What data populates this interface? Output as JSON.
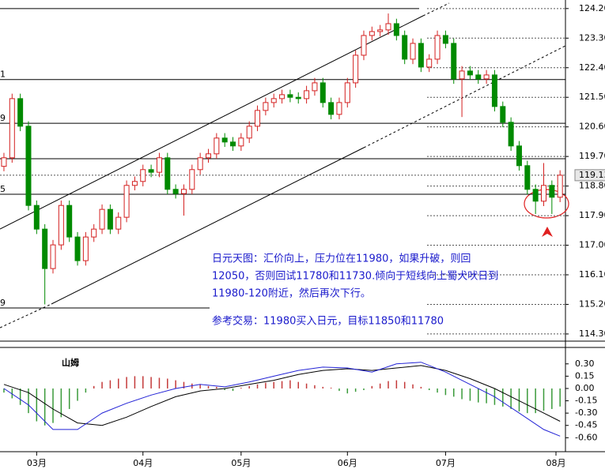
{
  "chart_data": [
    {
      "type": "candlestick",
      "xlim": [
        -0.48,
        68.66
      ],
      "ylim": [
        114.13,
        124.46
      ],
      "yticks": [
        {
          "value": 124.2,
          "label": "124.20"
        },
        {
          "value": 123.3,
          "label": "123.30"
        },
        {
          "value": 122.4,
          "label": "122.40"
        },
        {
          "value": 121.5,
          "label": "121.50"
        },
        {
          "value": 120.6,
          "label": "120.60"
        },
        {
          "value": 119.7,
          "label": "119.70"
        },
        {
          "value": 118.8,
          "label": "118.80"
        },
        {
          "value": 117.9,
          "label": "117.90"
        },
        {
          "value": 117.0,
          "label": "117.00"
        },
        {
          "value": 116.1,
          "label": "116.10"
        },
        {
          "value": 115.2,
          "label": "115.20"
        },
        {
          "value": 114.3,
          "label": "114.30"
        }
      ],
      "up_color": "#d42020",
      "down_color": "#008a00",
      "open": [
        119.4,
        119.66,
        121.46,
        120.62,
        118.21,
        117.49,
        116.29,
        117.01,
        118.21,
        117.25,
        116.53,
        117.25,
        117.49,
        118.09,
        117.49,
        117.85,
        118.82,
        118.94,
        119.3,
        119.22,
        119.66,
        118.7,
        118.57,
        118.7,
        119.3,
        119.66,
        119.78,
        120.26,
        120.14,
        120.02,
        120.26,
        120.62,
        121.1,
        121.34,
        121.46,
        121.58,
        121.5,
        121.46,
        121.7,
        121.94,
        121.34,
        120.98,
        121.34,
        121.94,
        122.78,
        123.38,
        123.5,
        123.55,
        123.74,
        123.38,
        122.66,
        123.14,
        122.42,
        122.66,
        123.38,
        123.14,
        122.06,
        122.3,
        122.18,
        122.06,
        122.18,
        121.22,
        120.74,
        120.02,
        119.42,
        118.7,
        118.34,
        118.82,
        118.46
      ],
      "high": [
        119.81,
        121.61,
        121.61,
        120.77,
        118.36,
        117.64,
        117.16,
        118.36,
        118.36,
        117.4,
        117.4,
        117.64,
        118.24,
        118.24,
        118.0,
        118.97,
        119.09,
        119.45,
        119.45,
        119.81,
        119.81,
        118.85,
        118.85,
        119.45,
        119.81,
        119.93,
        120.41,
        120.41,
        120.29,
        120.41,
        120.77,
        121.25,
        121.49,
        121.61,
        121.73,
        121.73,
        121.65,
        121.85,
        122.09,
        122.09,
        121.49,
        121.49,
        122.09,
        122.93,
        123.53,
        123.65,
        123.7,
        124.05,
        123.89,
        123.53,
        123.29,
        123.29,
        122.81,
        123.53,
        123.53,
        123.29,
        122.45,
        122.45,
        122.33,
        122.33,
        122.33,
        121.37,
        120.89,
        120.17,
        119.57,
        118.85,
        119.5,
        118.97,
        119.28
      ],
      "low": [
        119.25,
        119.51,
        120.47,
        118.06,
        117.34,
        115.2,
        116.14,
        116.86,
        117.1,
        116.38,
        116.38,
        117.1,
        117.34,
        117.34,
        117.34,
        117.7,
        118.67,
        118.79,
        119.07,
        119.07,
        118.55,
        118.42,
        117.9,
        118.55,
        119.15,
        119.51,
        119.63,
        119.99,
        119.87,
        119.87,
        120.11,
        120.47,
        120.95,
        121.19,
        121.31,
        121.35,
        121.31,
        121.31,
        121.55,
        121.19,
        120.83,
        120.83,
        121.19,
        121.79,
        122.63,
        123.23,
        123.35,
        123.4,
        123.23,
        122.51,
        122.51,
        122.27,
        122.27,
        122.51,
        122.99,
        121.91,
        120.9,
        122.03,
        121.91,
        121.91,
        121.07,
        120.59,
        119.87,
        119.27,
        118.55,
        117.95,
        118.19,
        117.95,
        118.31
      ],
      "close": [
        119.66,
        121.46,
        120.62,
        118.21,
        117.49,
        116.29,
        117.01,
        118.21,
        117.25,
        116.53,
        117.25,
        117.49,
        118.09,
        117.49,
        117.85,
        118.82,
        118.94,
        119.3,
        119.22,
        119.66,
        118.7,
        118.57,
        118.7,
        119.3,
        119.66,
        119.78,
        120.26,
        120.14,
        120.02,
        120.26,
        120.62,
        121.1,
        121.34,
        121.46,
        121.58,
        121.5,
        121.46,
        121.7,
        121.94,
        121.34,
        120.98,
        121.34,
        121.94,
        122.78,
        123.38,
        123.5,
        123.55,
        123.74,
        123.38,
        122.66,
        123.14,
        122.42,
        122.66,
        123.38,
        123.14,
        122.06,
        122.3,
        122.18,
        122.06,
        122.18,
        121.22,
        120.74,
        120.02,
        119.42,
        118.7,
        118.34,
        118.82,
        118.46,
        119.13
      ],
      "last": {
        "value": 119.13,
        "label": "119.13"
      },
      "levels": [
        {
          "value": 124.2
        },
        {
          "value": 122.04,
          "label": "1"
        },
        {
          "value": 120.71,
          "label": "9"
        },
        {
          "value": 119.63
        },
        {
          "value": 118.55,
          "label": "5"
        },
        {
          "value": 115.09,
          "label": "9"
        }
      ],
      "annotation": [
        "日元天图：汇价向上，压力位在11980，如果升破，则回",
        "12050，否则回试11780和11730.倾向于短线向上蜀犬吠日到",
        "11980-120附近，然后再次下行。",
        "参考交易：11980买入日元，目标11850和11780"
      ]
    },
    {
      "type": "macd",
      "title": "山姆",
      "xlim": [
        -0.48,
        68.66
      ],
      "ylim": [
        -0.77,
        0.5
      ],
      "yticks": [
        {
          "value": 0.3,
          "label": "0.30"
        },
        {
          "value": 0.15,
          "label": "0.15"
        },
        {
          "value": 0,
          "label": "0.00"
        },
        {
          "value": -0.15,
          "label": "-0.15"
        },
        {
          "value": -0.3,
          "label": "-0.30"
        },
        {
          "value": -0.45,
          "label": "-0.45"
        },
        {
          "value": -0.6,
          "label": "-0.60"
        }
      ],
      "xticks": [
        {
          "value": 4,
          "label": "03月"
        },
        {
          "value": 17,
          "label": "04月"
        },
        {
          "value": 29,
          "label": "05月"
        },
        {
          "value": 42,
          "label": "06月"
        },
        {
          "value": 54,
          "label": "07月"
        },
        {
          "value": 67.5,
          "label": "08月"
        }
      ],
      "histogram": [
        -0.05,
        -0.12,
        -0.2,
        -0.3,
        -0.4,
        -0.45,
        -0.42,
        -0.35,
        -0.25,
        -0.15,
        -0.05,
        0.03,
        0.08,
        0.1,
        0.12,
        0.14,
        0.15,
        0.15,
        0.14,
        0.13,
        0.12,
        0.1,
        0.08,
        0.06,
        0.05,
        0.03,
        0.02,
        -0.02,
        -0.03,
        0.01,
        0.03,
        0.05,
        0.07,
        0.08,
        0.09,
        0.1,
        0.08,
        0.06,
        0.04,
        0.02,
        0.01,
        -0.03,
        -0.06,
        -0.04,
        -0.02,
        0.03,
        0.06,
        0.09,
        0.1,
        0.08,
        0.05,
        0.02,
        -0.02,
        -0.05,
        -0.08,
        -0.1,
        -0.13,
        -0.15,
        -0.17,
        -0.18,
        -0.2,
        -0.22,
        -0.25,
        -0.28,
        -0.3,
        -0.3,
        -0.27,
        -0.25,
        -0.22
      ],
      "pos_color": "#c43a3a",
      "neg_color": "#3a9a3a",
      "x": [
        0,
        3,
        6,
        9,
        12,
        15,
        18,
        21,
        24,
        27,
        30,
        33,
        36,
        39,
        42,
        45,
        48,
        51,
        54,
        57,
        60,
        63,
        66,
        68
      ],
      "series": [
        {
          "color": "#000000",
          "values": [
            0.05,
            -0.05,
            -0.25,
            -0.42,
            -0.45,
            -0.35,
            -0.22,
            -0.1,
            -0.03,
            0.0,
            0.05,
            0.1,
            0.17,
            0.22,
            0.24,
            0.22,
            0.25,
            0.28,
            0.22,
            0.12,
            0.0,
            -0.15,
            -0.3,
            -0.4
          ]
        },
        {
          "color": "#2323d6",
          "values": [
            0.0,
            -0.2,
            -0.5,
            -0.5,
            -0.3,
            -0.18,
            -0.08,
            0.0,
            0.05,
            0.02,
            0.08,
            0.15,
            0.22,
            0.26,
            0.25,
            0.2,
            0.3,
            0.32,
            0.2,
            0.05,
            -0.1,
            -0.3,
            -0.5,
            -0.58
          ]
        }
      ]
    }
  ]
}
